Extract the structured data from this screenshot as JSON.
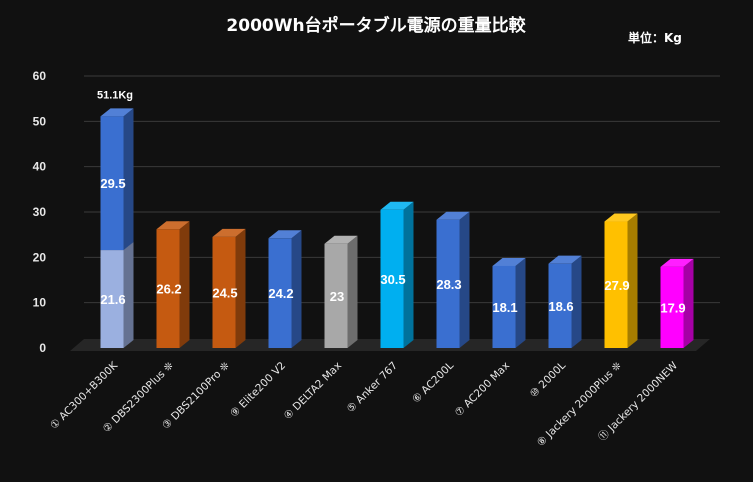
{
  "chart_data": {
    "type": "bar",
    "title": "2000Wh台ポータブル電源の重量比較",
    "unit_label": "単位：Kg",
    "ylim": [
      0,
      60
    ],
    "yticks": [
      0,
      10,
      20,
      30,
      40,
      50,
      60
    ],
    "grid": true,
    "categories": [
      "① AC300+B300K",
      "② DBS2300Plus ❊",
      "③ DBS2100Pro ❊",
      "⑨ Elite200 V2",
      "④ DELTA2 Max",
      "⑤ Anker 767",
      "⑥ AC200L",
      "⑦ AC200 Max",
      "⑩ 2000L",
      "⑧ Jackery 2000Plus ❊",
      "⑪ Jackery 2000NEW"
    ],
    "series": [
      {
        "values": [
          21.6,
          26.2,
          24.5,
          24.2,
          23,
          30.5,
          28.3,
          18.1,
          18.6,
          27.9,
          17.9
        ],
        "labels": [
          "21.6",
          "26.2",
          "24.5",
          "24.2",
          "23",
          "30.5",
          "28.3",
          "18.1",
          "18.6",
          "27.9",
          "17.9"
        ],
        "colors": [
          "#9bb0e0",
          "#c55a11",
          "#c55a11",
          "#3a6fd0",
          "#a8a8a8",
          "#00aff0",
          "#3a6fd0",
          "#3a6fd0",
          "#3a6fd0",
          "#ffc000",
          "#ff00ff"
        ]
      },
      {
        "values": [
          29.5,
          0,
          0,
          0,
          0,
          0,
          0,
          0,
          0,
          0,
          0
        ],
        "labels": [
          "29.5",
          "",
          "",
          "",
          "",
          "",
          "",
          "",
          "",
          "",
          ""
        ],
        "colors": [
          "#3a6fd0",
          "#3a6fd0",
          "#3a6fd0",
          "#3a6fd0",
          "#3a6fd0",
          "#3a6fd0",
          "#3a6fd0",
          "#3a6fd0",
          "#3a6fd0",
          "#3a6fd0",
          "#3a6fd0"
        ]
      }
    ],
    "total_annotation": {
      "category_index": 0,
      "text": "51.1Kg"
    }
  }
}
